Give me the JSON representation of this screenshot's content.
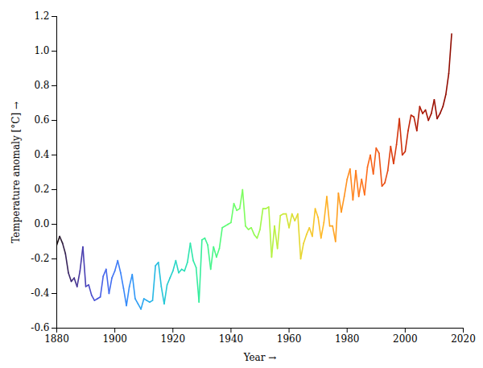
{
  "chart_data": {
    "type": "line",
    "xlabel": "Year",
    "ylabel": "Temperature anomaly [°C]",
    "xlim": [
      1880,
      2020
    ],
    "ylim": [
      -0.6,
      1.2
    ],
    "xticks": [
      1880,
      1900,
      1920,
      1940,
      1960,
      1980,
      2000,
      2020
    ],
    "yticks": [
      -0.6,
      -0.4,
      -0.2,
      {
        "value": 0,
        "label": "0.0"
      },
      0.2,
      0.4,
      0.6,
      0.8,
      {
        "value": 1,
        "label": "1.0"
      },
      1.2
    ],
    "grid": false,
    "x": [
      1880,
      1881,
      1882,
      1883,
      1884,
      1885,
      1886,
      1887,
      1888,
      1889,
      1890,
      1891,
      1892,
      1893,
      1894,
      1895,
      1896,
      1897,
      1898,
      1899,
      1900,
      1901,
      1902,
      1903,
      1904,
      1905,
      1906,
      1907,
      1908,
      1909,
      1910,
      1911,
      1912,
      1913,
      1914,
      1915,
      1916,
      1917,
      1918,
      1919,
      1920,
      1921,
      1922,
      1923,
      1924,
      1925,
      1926,
      1927,
      1928,
      1929,
      1930,
      1931,
      1932,
      1933,
      1934,
      1935,
      1936,
      1937,
      1938,
      1939,
      1940,
      1941,
      1942,
      1943,
      1944,
      1945,
      1946,
      1947,
      1948,
      1949,
      1950,
      1951,
      1952,
      1953,
      1954,
      1955,
      1956,
      1957,
      1958,
      1959,
      1960,
      1961,
      1962,
      1963,
      1964,
      1965,
      1966,
      1967,
      1968,
      1969,
      1970,
      1971,
      1972,
      1973,
      1974,
      1975,
      1976,
      1977,
      1978,
      1979,
      1980,
      1981,
      1982,
      1983,
      1984,
      1985,
      1986,
      1987,
      1988,
      1989,
      1990,
      1991,
      1992,
      1993,
      1994,
      1995,
      1996,
      1997,
      1998,
      1999,
      2000,
      2001,
      2002,
      2003,
      2004,
      2005,
      2006,
      2007,
      2008,
      2009,
      2010,
      2011,
      2012,
      2013,
      2014,
      2015,
      2016
    ],
    "values": [
      -0.12,
      -0.07,
      -0.11,
      -0.17,
      -0.28,
      -0.33,
      -0.31,
      -0.36,
      -0.27,
      -0.13,
      -0.36,
      -0.35,
      -0.41,
      -0.44,
      -0.43,
      -0.42,
      -0.3,
      -0.26,
      -0.4,
      -0.31,
      -0.27,
      -0.21,
      -0.28,
      -0.37,
      -0.47,
      -0.36,
      -0.29,
      -0.43,
      -0.46,
      -0.49,
      -0.43,
      -0.44,
      -0.45,
      -0.44,
      -0.24,
      -0.22,
      -0.36,
      -0.46,
      -0.35,
      -0.31,
      -0.27,
      -0.21,
      -0.28,
      -0.26,
      -0.27,
      -0.22,
      -0.11,
      -0.21,
      -0.25,
      -0.45,
      -0.09,
      -0.08,
      -0.12,
      -0.26,
      -0.13,
      -0.19,
      -0.14,
      -0.02,
      -0.01,
      0.0,
      0.01,
      0.12,
      0.08,
      0.09,
      0.2,
      -0.01,
      -0.03,
      -0.02,
      -0.06,
      -0.08,
      -0.03,
      0.09,
      0.09,
      0.1,
      -0.19,
      -0.01,
      -0.14,
      0.05,
      0.06,
      0.06,
      -0.02,
      0.06,
      0.02,
      0.06,
      -0.2,
      -0.11,
      -0.06,
      -0.02,
      -0.07,
      0.09,
      0.04,
      -0.08,
      0.01,
      0.16,
      -0.01,
      -0.01,
      -0.1,
      0.18,
      0.07,
      0.16,
      0.26,
      0.32,
      0.14,
      0.31,
      0.16,
      0.26,
      0.17,
      0.33,
      0.4,
      0.29,
      0.44,
      0.41,
      0.22,
      0.24,
      0.31,
      0.45,
      0.35,
      0.46,
      0.61,
      0.4,
      0.42,
      0.54,
      0.63,
      0.62,
      0.54,
      0.68,
      0.64,
      0.66,
      0.6,
      0.64,
      0.72,
      0.61,
      0.64,
      0.68,
      0.75,
      0.87,
      1.1
    ]
  }
}
